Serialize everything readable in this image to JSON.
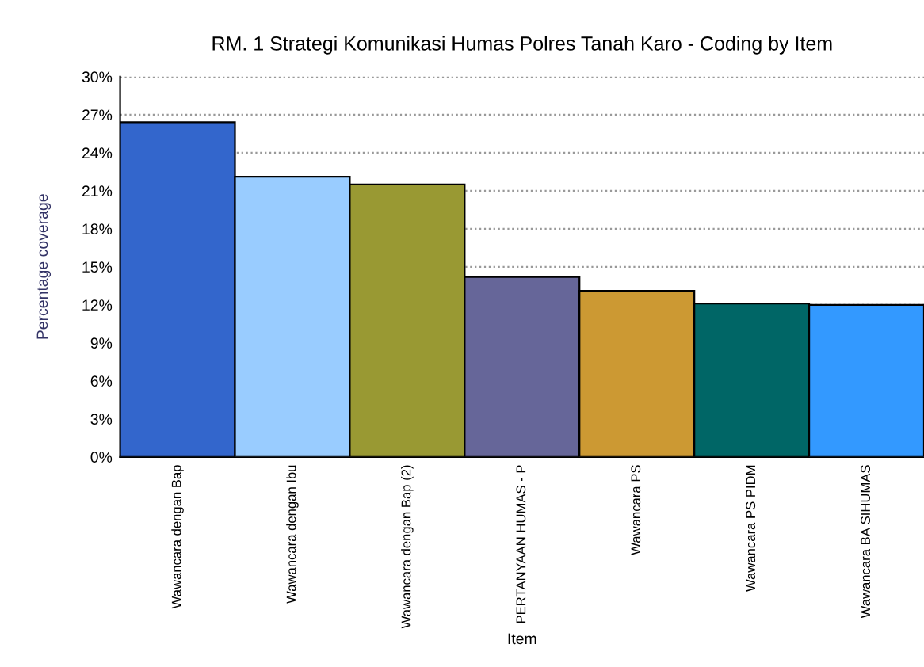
{
  "chart_data": {
    "type": "bar",
    "title": "RM. 1 Strategi Komunikasi Humas Polres Tanah Karo - Coding by Item",
    "xlabel": "Item",
    "ylabel": "Percentage coverage",
    "categories": [
      "Wawancara dengan Bap",
      "Wawancara dengan Ibu",
      "Wawancara dengan Bap (2)",
      "PERTANYAAN HUMAS - P",
      "Wawancara PS",
      "Wawancara PS PIDM",
      "Wawancara BA SIHUMAS"
    ],
    "values": [
      26.4,
      22.1,
      21.5,
      14.2,
      13.1,
      12.1,
      12.0
    ],
    "colors": [
      "#3366cc",
      "#99ccff",
      "#999933",
      "#666699",
      "#cc9933",
      "#006666",
      "#3399ff"
    ],
    "ylim": [
      0,
      30
    ],
    "yticks": [
      {
        "value": 0,
        "label": "0%"
      },
      {
        "value": 3,
        "label": "3%"
      },
      {
        "value": 6,
        "label": "6%"
      },
      {
        "value": 9,
        "label": "9%"
      },
      {
        "value": 12,
        "label": "12%"
      },
      {
        "value": 15,
        "label": "15%"
      },
      {
        "value": 18,
        "label": "18%"
      },
      {
        "value": 21,
        "label": "21%"
      },
      {
        "value": 24,
        "label": "24%"
      },
      {
        "value": 27,
        "label": "27%"
      },
      {
        "value": 30,
        "label": "30%"
      }
    ],
    "grid": "y"
  }
}
